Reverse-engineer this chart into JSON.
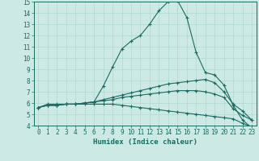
{
  "xlabel": "Humidex (Indice chaleur)",
  "ylabel": "",
  "xlim": [
    -0.5,
    23.5
  ],
  "ylim": [
    4,
    15
  ],
  "xticks": [
    0,
    1,
    2,
    3,
    4,
    5,
    6,
    7,
    8,
    9,
    10,
    11,
    12,
    13,
    14,
    15,
    16,
    17,
    18,
    19,
    20,
    21,
    22,
    23
  ],
  "yticks": [
    4,
    5,
    6,
    7,
    8,
    9,
    10,
    11,
    12,
    13,
    14,
    15
  ],
  "background_color": "#cce9e4",
  "line_color": "#1a6b60",
  "grid_color": "#b0d8d0",
  "series": [
    {
      "x": [
        0,
        1,
        2,
        3,
        4,
        5,
        6,
        7,
        8,
        9,
        10,
        11,
        12,
        13,
        14,
        15,
        16,
        17,
        18,
        19,
        20,
        21,
        22,
        23
      ],
      "y": [
        5.6,
        5.9,
        5.9,
        5.9,
        5.9,
        6.0,
        6.1,
        7.5,
        9.2,
        10.8,
        11.5,
        12.0,
        13.0,
        14.2,
        15.0,
        15.1,
        13.6,
        10.5,
        8.7,
        8.5,
        7.6,
        5.8,
        4.5,
        3.8
      ]
    },
    {
      "x": [
        0,
        1,
        2,
        3,
        4,
        5,
        6,
        7,
        8,
        9,
        10,
        11,
        12,
        13,
        14,
        15,
        16,
        17,
        18,
        19,
        20,
        21,
        22,
        23
      ],
      "y": [
        5.6,
        5.8,
        5.8,
        5.9,
        5.9,
        6.0,
        6.1,
        6.3,
        6.5,
        6.7,
        6.9,
        7.1,
        7.3,
        7.5,
        7.7,
        7.8,
        7.9,
        8.0,
        8.1,
        7.8,
        7.0,
        5.9,
        5.3,
        4.5
      ]
    },
    {
      "x": [
        0,
        1,
        2,
        3,
        4,
        5,
        6,
        7,
        8,
        9,
        10,
        11,
        12,
        13,
        14,
        15,
        16,
        17,
        18,
        19,
        20,
        21,
        22,
        23
      ],
      "y": [
        5.6,
        5.8,
        5.8,
        5.9,
        5.9,
        6.0,
        6.1,
        6.2,
        6.3,
        6.5,
        6.6,
        6.7,
        6.8,
        6.9,
        7.0,
        7.1,
        7.1,
        7.1,
        7.0,
        6.8,
        6.5,
        5.5,
        4.9,
        4.5
      ]
    },
    {
      "x": [
        0,
        1,
        2,
        3,
        4,
        5,
        6,
        7,
        8,
        9,
        10,
        11,
        12,
        13,
        14,
        15,
        16,
        17,
        18,
        19,
        20,
        21,
        22,
        23
      ],
      "y": [
        5.6,
        5.8,
        5.8,
        5.9,
        5.9,
        5.9,
        5.9,
        5.9,
        5.9,
        5.8,
        5.7,
        5.6,
        5.5,
        5.4,
        5.3,
        5.2,
        5.1,
        5.0,
        4.9,
        4.8,
        4.7,
        4.6,
        4.2,
        3.9
      ]
    }
  ],
  "tick_fontsize": 5.5,
  "xlabel_fontsize": 6.5
}
